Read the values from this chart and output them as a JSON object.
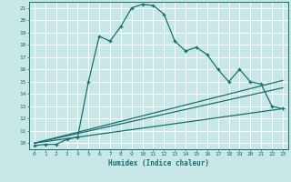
{
  "title": "",
  "xlabel": "Humidex (Indice chaleur)",
  "xlim": [
    -0.5,
    23.5
  ],
  "ylim": [
    9.5,
    21.5
  ],
  "yticks": [
    10,
    11,
    12,
    13,
    14,
    15,
    16,
    17,
    18,
    19,
    20,
    21
  ],
  "xticks": [
    0,
    1,
    2,
    3,
    4,
    5,
    6,
    7,
    8,
    9,
    10,
    11,
    12,
    13,
    14,
    15,
    16,
    17,
    18,
    19,
    20,
    21,
    22,
    23
  ],
  "bg_color": "#c8e8e8",
  "grid_color": "#ffffff",
  "line_color": "#1a6e6e",
  "main_line": {
    "x": [
      0,
      1,
      2,
      3,
      4,
      5,
      6,
      7,
      8,
      9,
      10,
      11,
      12,
      13,
      14,
      15,
      16,
      17,
      18,
      19,
      20,
      21,
      22,
      23
    ],
    "y": [
      9.8,
      9.9,
      9.9,
      10.3,
      10.5,
      15.0,
      18.7,
      18.3,
      19.5,
      21.0,
      21.3,
      21.2,
      20.5,
      18.3,
      17.5,
      17.8,
      17.2,
      16.0,
      15.0,
      16.0,
      15.0,
      14.8,
      13.0,
      12.8
    ]
  },
  "ref_line1": {
    "x": [
      0,
      23
    ],
    "y": [
      10.0,
      15.1
    ]
  },
  "ref_line2": {
    "x": [
      0,
      23
    ],
    "y": [
      10.0,
      14.5
    ]
  },
  "ref_line3": {
    "x": [
      0,
      23
    ],
    "y": [
      10.0,
      12.8
    ]
  }
}
